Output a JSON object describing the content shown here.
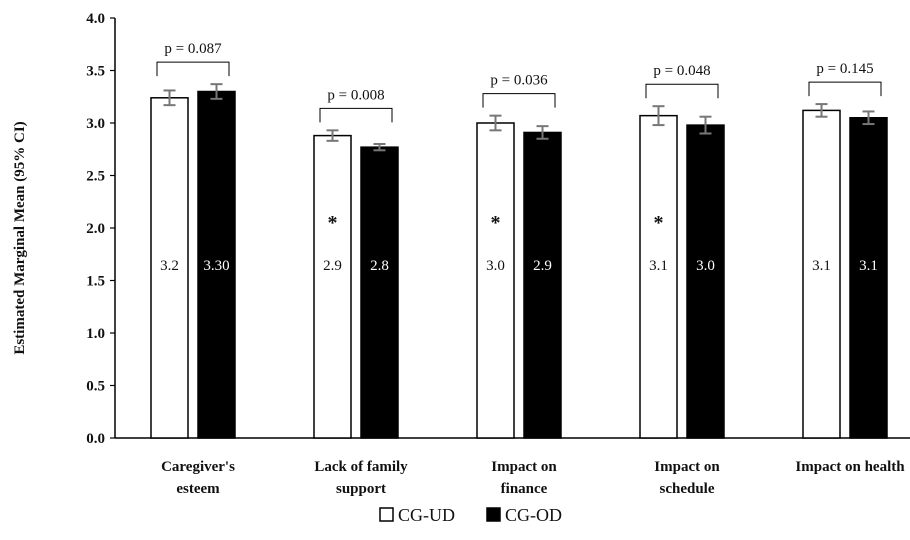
{
  "chart_data": {
    "type": "bar",
    "ylabel": "Estimated Marginal Mean (95% CI)",
    "xlabel": "",
    "ylim": [
      0,
      4.0
    ],
    "yticks": [
      "0.0",
      "0.5",
      "1.0",
      "1.5",
      "2.0",
      "2.5",
      "3.0",
      "3.5",
      "4.0"
    ],
    "grid": false,
    "legend_position": "bottom",
    "categories": [
      [
        "Caregiver's",
        "esteem"
      ],
      [
        "Lack of family",
        "support"
      ],
      [
        "Impact on",
        "finance"
      ],
      [
        "Impact on",
        "schedule"
      ],
      [
        "Impact on health"
      ]
    ],
    "series": [
      {
        "name": "CG-UD",
        "color": "#ffffff",
        "values": [
          3.24,
          2.88,
          3.0,
          3.07,
          3.12
        ],
        "errors": [
          0.07,
          0.05,
          0.07,
          0.09,
          0.06
        ],
        "data_labels": [
          "3.2",
          "2.9",
          "3.0",
          "3.1",
          "3.1"
        ]
      },
      {
        "name": "CG-OD",
        "color": "#000000",
        "values": [
          3.3,
          2.77,
          2.91,
          2.98,
          3.05
        ],
        "errors": [
          0.07,
          0.03,
          0.06,
          0.08,
          0.06
        ],
        "data_labels": [
          "3.30",
          "2.8",
          "2.9",
          "3.0",
          "3.1"
        ]
      }
    ],
    "annotations": {
      "p_values": [
        "p = 0.087",
        "p = 0.008",
        "p = 0.036",
        "p = 0.048",
        "p = 0.145"
      ],
      "significance_marker": "*",
      "significant_categories": [
        1,
        2,
        3
      ]
    }
  }
}
